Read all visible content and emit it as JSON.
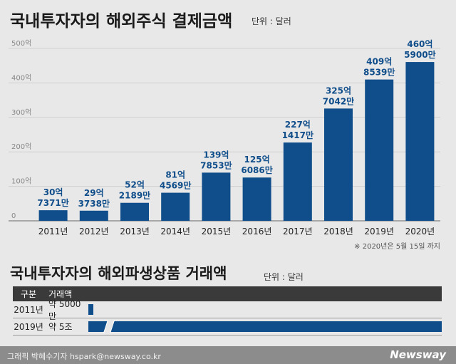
{
  "chart1": {
    "title": "국내투자자의 해외주식 결제금액",
    "unit": "단위 : 달러",
    "note": "※ 2020년은 5월 15일 까지",
    "bar_color": "#104e8b",
    "label_color": "#104e8b"
  },
  "chart_data": [
    {
      "type": "bar",
      "title": "국내투자자의 해외주식 결제금액",
      "unit": "단위 : 달러",
      "categories": [
        "2011년",
        "2012년",
        "2013년",
        "2014년",
        "2015년",
        "2016년",
        "2017년",
        "2018년",
        "2019년",
        "2020년"
      ],
      "values": [
        30.7371,
        29.3738,
        52.2189,
        81.4569,
        139.7853,
        125.6086,
        227.1417,
        325.7042,
        409.8539,
        460.59
      ],
      "data_labels_top": [
        "30억",
        "29억",
        "52억",
        "81억",
        "139억",
        "125억",
        "227억",
        "325억",
        "409억",
        "460억"
      ],
      "data_labels_bottom": [
        "7371만",
        "3738만",
        "2189만",
        "4569만",
        "7853만",
        "6086만",
        "1417만",
        "7042만",
        "8539만",
        "5900만"
      ],
      "ytick_labels": [
        "0",
        "100억",
        "200억",
        "300억",
        "400억",
        "500억"
      ],
      "ylim": [
        0,
        500
      ],
      "grid": true
    },
    {
      "type": "bar",
      "title": "국내투자자의 해외파생상품 거래액",
      "unit": "단위 : 달러",
      "columns": [
        "구분",
        "거래액"
      ],
      "categories": [
        "2011년",
        "2019년"
      ],
      "value_labels": [
        "약 5000만",
        "약 5조"
      ],
      "values": [
        0.5,
        50000
      ],
      "axis_break": true
    }
  ],
  "chart2": {
    "title": "국내투자자의 해외파생상품 거래액",
    "unit": "단위 : 달러",
    "header_col1": "구분",
    "header_col2": "거래액",
    "rows": [
      {
        "year": "2011년",
        "amount": "약 5000만"
      },
      {
        "year": "2019년",
        "amount": "약 5조"
      }
    ]
  },
  "footer": {
    "credit": "그래픽 박혜수기자 hspark@newsway.co.kr",
    "logo": "Newsway"
  }
}
